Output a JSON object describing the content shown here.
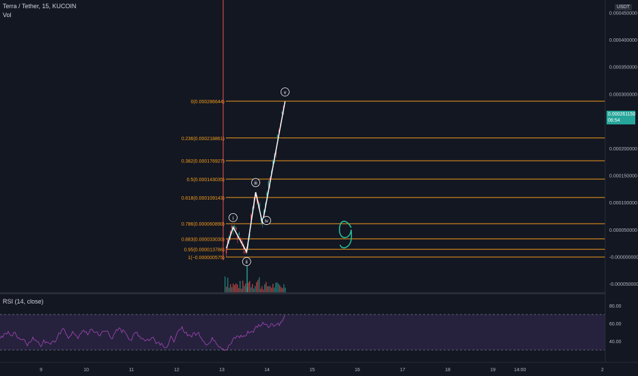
{
  "header": {
    "symbol": "Terra / Tether, 15, KUCOIN",
    "volume_label": "Vol",
    "currency": "USDT"
  },
  "price_axis": [
    "0.000400000",
    "0.000350000",
    "0.000300000",
    "0.000200000",
    "0.000150000",
    "0.000100000",
    "0.000050000",
    "-0.000000000",
    "-0.000050000"
  ],
  "price_axis_partial": "0.000450000",
  "current_price": {
    "value": "0.000261150",
    "countdown": "06:54"
  },
  "fib_levels": [
    {
      "label": "0(0.000286644)",
      "y": 0.000286644
    },
    {
      "label": "0.236(0.000218861)",
      "y": 0.000218861
    },
    {
      "label": "0.382(0.000176927)",
      "y": 0.000176927
    },
    {
      "label": "0.5(0.000143035)",
      "y": 0.000143035
    },
    {
      "label": "0.618(0.000109143)",
      "y": 0.000109143
    },
    {
      "label": "0.786(0.000060890)",
      "y": 6.089e-05
    },
    {
      "label": "0.883(0.000033030)",
      "y": 3.303e-05
    },
    {
      "label": "0.95(0.000013786)",
      "y": 1.3786e-05
    },
    {
      "label": "1(−0.000000575)",
      "y": -5.75e-07
    }
  ],
  "fib_color": "#f59c1a",
  "waves": [
    {
      "label": "i",
      "x": 13.25,
      "y": 5.45e-05
    },
    {
      "label": "ii",
      "x": 13.55,
      "y": 8.7e-06
    },
    {
      "label": "iii",
      "x": 13.75,
      "y": 0.000119
    },
    {
      "label": "iv",
      "x": 13.9,
      "y": 6.17e-05
    },
    {
      "label": "v",
      "x": 14.4,
      "y": 0.000286
    }
  ],
  "wave_start": {
    "x": 13.1,
    "y": 1.53e-05
  },
  "annotation": {
    "text": "9",
    "color": "#26c6a0"
  },
  "rsi": {
    "title": "RSI (14, close)",
    "axis": [
      "80.00",
      "60.00",
      "40.00"
    ],
    "upper": 70,
    "lower": 30
  },
  "time_axis": [
    "9",
    "10",
    "11",
    "12",
    "13",
    "14",
    "15",
    "16",
    "17",
    "18",
    "19",
    "14:00"
  ],
  "time_axis_partial": "2"
}
